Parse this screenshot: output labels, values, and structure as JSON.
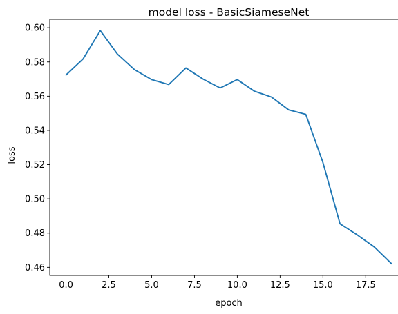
{
  "chart_data": {
    "type": "line",
    "title": "model loss - BasicSiameseNet",
    "xlabel": "epoch",
    "ylabel": "loss",
    "xlim": [
      -0.95,
      19.95
    ],
    "ylim": [
      0.4553,
      0.6049
    ],
    "xticks": [
      0.0,
      2.5,
      5.0,
      7.5,
      10.0,
      12.5,
      15.0,
      17.5
    ],
    "xtick_labels": [
      "0.0",
      "2.5",
      "5.0",
      "7.5",
      "10.0",
      "12.5",
      "15.0",
      "17.5"
    ],
    "yticks": [
      0.46,
      0.48,
      0.5,
      0.52,
      0.54,
      0.56,
      0.58,
      0.6
    ],
    "ytick_labels": [
      "0.46",
      "0.48",
      "0.50",
      "0.52",
      "0.54",
      "0.56",
      "0.58",
      "0.60"
    ],
    "grid": false,
    "series": [
      {
        "color": "#1f77b4",
        "x": [
          0,
          1,
          2,
          3,
          4,
          5,
          6,
          7,
          8,
          9,
          10,
          11,
          12,
          13,
          14,
          15,
          16,
          17,
          18,
          19
        ],
        "values": [
          0.5724,
          0.5818,
          0.5983,
          0.5846,
          0.5755,
          0.5697,
          0.5668,
          0.5765,
          0.57,
          0.5648,
          0.5697,
          0.5629,
          0.5595,
          0.552,
          0.5494,
          0.5213,
          0.4854,
          0.479,
          0.4719,
          0.4622
        ]
      }
    ]
  }
}
